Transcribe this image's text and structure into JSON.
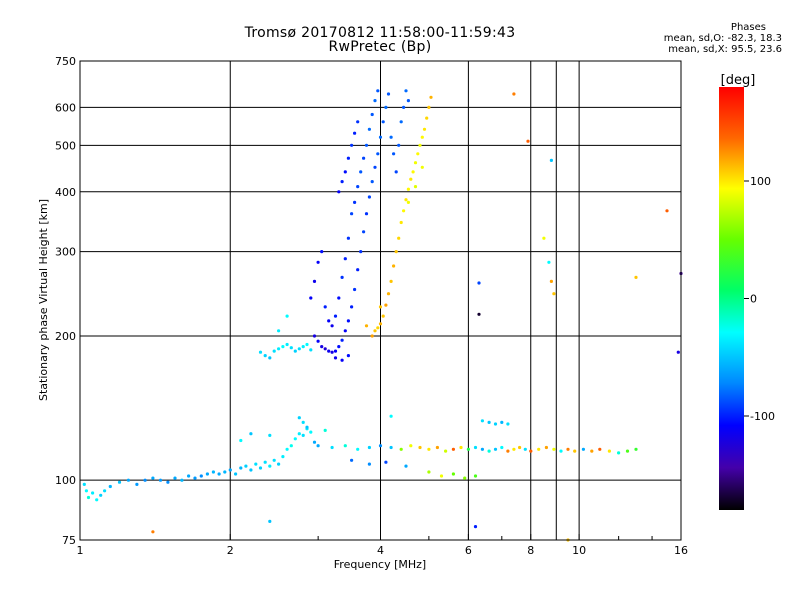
{
  "header": {
    "title": "Tromsø 20170812 11:58:00-11:59:43",
    "subtitle": "RwPretec (Bp)",
    "stats_title": "Phases",
    "stats_o": "mean, sd,O: -82.3, 18.3",
    "stats_x": "mean, sd,X:  95.5, 23.6"
  },
  "chart_data": {
    "type": "scatter",
    "title": "Tromsø 20170812 11:58:00-11:59:43",
    "subtitle": "RwPretec (Bp)",
    "xlabel": "Frequency [MHz]",
    "ylabel": "Stationary phase Virtual Height [km]",
    "x_scale": "log",
    "y_scale": "log",
    "xlim": [
      1,
      16
    ],
    "ylim": [
      75,
      750
    ],
    "x_ticks": [
      {
        "value": 1,
        "label": "1"
      },
      {
        "value": 2,
        "label": "2"
      },
      {
        "value": 4,
        "label": "4"
      },
      {
        "value": 6,
        "label": "6"
      },
      {
        "value": 8,
        "label": "8"
      },
      {
        "value": 10,
        "label": "10"
      },
      {
        "value": 16,
        "label": "16"
      }
    ],
    "x_gridlines": [
      2,
      4,
      6,
      8,
      9,
      10
    ],
    "y_ticks": [
      {
        "value": 75,
        "label": "75"
      },
      {
        "value": 100,
        "label": "100"
      },
      {
        "value": 200,
        "label": "200"
      },
      {
        "value": 300,
        "label": "300"
      },
      {
        "value": 400,
        "label": "400"
      },
      {
        "value": 500,
        "label": "500"
      },
      {
        "value": 600,
        "label": "600"
      },
      {
        "value": 750,
        "label": "750"
      }
    ],
    "grid": true,
    "colorbar": {
      "label": "[deg]",
      "range": [
        -180,
        180
      ],
      "ticks": [
        {
          "value": 100,
          "label": "100"
        },
        {
          "value": 0,
          "label": "0"
        },
        {
          "value": -100,
          "label": "-100"
        }
      ]
    },
    "series": [
      {
        "points": [
          [
            1.02,
            98,
            -40
          ],
          [
            1.03,
            95,
            -30
          ],
          [
            1.04,
            92,
            -20
          ],
          [
            1.06,
            94,
            -35
          ],
          [
            1.08,
            91,
            -30
          ],
          [
            1.1,
            93,
            -45
          ],
          [
            1.12,
            95,
            -40
          ],
          [
            1.15,
            97,
            -55
          ],
          [
            1.2,
            99,
            -50
          ],
          [
            1.25,
            100,
            -60
          ],
          [
            1.3,
            98,
            -65
          ],
          [
            1.35,
            100,
            -70
          ],
          [
            1.4,
            101,
            -60
          ],
          [
            1.45,
            100,
            -65
          ],
          [
            1.5,
            99,
            -70
          ],
          [
            1.55,
            101,
            -60
          ],
          [
            1.6,
            100,
            -55
          ],
          [
            1.65,
            102,
            -60
          ],
          [
            1.7,
            101,
            -65
          ],
          [
            1.75,
            102,
            -70
          ],
          [
            1.8,
            103,
            -60
          ],
          [
            1.85,
            104,
            -55
          ],
          [
            1.9,
            103,
            -60
          ],
          [
            1.95,
            104,
            -55
          ],
          [
            2.0,
            105,
            -60
          ],
          [
            2.05,
            103,
            -50
          ],
          [
            2.1,
            106,
            -55
          ],
          [
            2.15,
            107,
            -45
          ],
          [
            2.2,
            105,
            -50
          ],
          [
            2.25,
            108,
            -40
          ],
          [
            2.3,
            106,
            -45
          ],
          [
            2.35,
            109,
            -40
          ],
          [
            2.4,
            107,
            -35
          ],
          [
            2.45,
            110,
            -40
          ],
          [
            2.5,
            108,
            -45
          ],
          [
            2.55,
            112,
            -35
          ],
          [
            2.6,
            116,
            -30
          ],
          [
            2.65,
            118,
            -25
          ],
          [
            2.7,
            122,
            -30
          ],
          [
            2.75,
            125,
            -35
          ],
          [
            2.8,
            124,
            -40
          ],
          [
            2.85,
            128,
            -35
          ],
          [
            2.9,
            126,
            -30
          ],
          [
            2.75,
            135,
            -45
          ],
          [
            2.8,
            132,
            -40
          ],
          [
            2.85,
            129,
            -50
          ]
        ]
      },
      {
        "points": [
          [
            2.3,
            185,
            -40
          ],
          [
            2.35,
            182,
            -45
          ],
          [
            2.4,
            180,
            -50
          ],
          [
            2.45,
            186,
            -40
          ],
          [
            2.5,
            188,
            -35
          ],
          [
            2.55,
            190,
            -30
          ],
          [
            2.6,
            192,
            -35
          ],
          [
            2.65,
            189,
            -40
          ],
          [
            2.7,
            186,
            -45
          ],
          [
            2.75,
            188,
            -40
          ],
          [
            2.8,
            190,
            -35
          ],
          [
            2.85,
            192,
            -30
          ],
          [
            2.9,
            187,
            -40
          ]
        ]
      },
      {
        "points": [
          [
            2.95,
            200,
            -120
          ],
          [
            3.0,
            195,
            -110
          ],
          [
            3.05,
            190,
            -120
          ],
          [
            3.1,
            188,
            -125
          ],
          [
            3.15,
            186,
            -115
          ],
          [
            3.2,
            185,
            -120
          ],
          [
            3.25,
            186,
            -110
          ],
          [
            3.3,
            190,
            -105
          ],
          [
            3.35,
            196,
            -100
          ],
          [
            3.4,
            205,
            -110
          ],
          [
            3.45,
            215,
            -105
          ],
          [
            3.5,
            230,
            -100
          ],
          [
            3.55,
            250,
            -95
          ],
          [
            3.6,
            275,
            -100
          ],
          [
            3.65,
            300,
            -95
          ],
          [
            3.7,
            330,
            -90
          ],
          [
            3.75,
            360,
            -95
          ],
          [
            3.8,
            390,
            -90
          ],
          [
            3.85,
            420,
            -85
          ],
          [
            3.9,
            450,
            -90
          ],
          [
            3.95,
            480,
            -85
          ],
          [
            4.0,
            520,
            -80
          ],
          [
            4.05,
            560,
            -85
          ],
          [
            4.1,
            600,
            -80
          ],
          [
            4.15,
            640,
            -85
          ],
          [
            2.9,
            240,
            -110
          ],
          [
            2.95,
            260,
            -115
          ],
          [
            3.0,
            285,
            -110
          ],
          [
            3.05,
            300,
            -105
          ],
          [
            3.1,
            230,
            -100
          ],
          [
            3.15,
            215,
            -110
          ],
          [
            3.2,
            210,
            -115
          ],
          [
            3.25,
            220,
            -100
          ],
          [
            3.3,
            240,
            -105
          ],
          [
            3.35,
            265,
            -95
          ],
          [
            3.4,
            290,
            -100
          ],
          [
            3.45,
            320,
            -95
          ],
          [
            3.5,
            360,
            -90
          ],
          [
            3.55,
            380,
            -95
          ],
          [
            3.6,
            410,
            -90
          ],
          [
            3.65,
            440,
            -85
          ],
          [
            3.7,
            470,
            -90
          ],
          [
            3.75,
            500,
            -85
          ],
          [
            3.8,
            540,
            -80
          ],
          [
            3.85,
            580,
            -85
          ],
          [
            3.9,
            620,
            -80
          ],
          [
            3.95,
            650,
            -85
          ],
          [
            3.3,
            400,
            -110
          ],
          [
            3.35,
            420,
            -100
          ],
          [
            3.4,
            440,
            -105
          ],
          [
            3.45,
            470,
            -100
          ],
          [
            3.5,
            500,
            -95
          ],
          [
            3.55,
            530,
            -100
          ],
          [
            3.6,
            560,
            -95
          ],
          [
            4.2,
            520,
            -80
          ],
          [
            4.25,
            480,
            -85
          ],
          [
            4.3,
            440,
            -90
          ],
          [
            4.35,
            500,
            -85
          ],
          [
            4.4,
            560,
            -80
          ],
          [
            4.45,
            600,
            -85
          ],
          [
            4.5,
            650,
            -80
          ],
          [
            4.55,
            620,
            -85
          ],
          [
            3.25,
            180,
            -115
          ],
          [
            3.35,
            178,
            -110
          ],
          [
            3.45,
            182,
            -105
          ]
        ]
      },
      {
        "points": [
          [
            3.9,
            205,
            110
          ],
          [
            3.95,
            208,
            105
          ],
          [
            4.0,
            212,
            115
          ],
          [
            4.05,
            220,
            110
          ],
          [
            4.1,
            232,
            120
          ],
          [
            4.15,
            245,
            115
          ],
          [
            4.2,
            260,
            110
          ],
          [
            4.25,
            280,
            115
          ],
          [
            4.3,
            300,
            110
          ],
          [
            4.35,
            320,
            105
          ],
          [
            4.4,
            345,
            100
          ],
          [
            4.45,
            365,
            95
          ],
          [
            4.5,
            385,
            100
          ],
          [
            4.55,
            405,
            95
          ],
          [
            4.6,
            425,
            100
          ],
          [
            4.65,
            440,
            95
          ],
          [
            4.7,
            460,
            90
          ],
          [
            4.75,
            480,
            95
          ],
          [
            4.8,
            500,
            90
          ],
          [
            4.85,
            520,
            95
          ],
          [
            4.9,
            540,
            100
          ],
          [
            4.95,
            570,
            105
          ],
          [
            5.0,
            600,
            110
          ],
          [
            5.05,
            630,
            115
          ],
          [
            4.55,
            380,
            90
          ],
          [
            4.7,
            410,
            85
          ],
          [
            4.85,
            450,
            90
          ],
          [
            3.75,
            210,
            115
          ],
          [
            3.85,
            200,
            120
          ],
          [
            4.0,
            230,
            110
          ]
        ]
      },
      {
        "points": [
          [
            3.0,
            118,
            -60
          ],
          [
            3.2,
            117,
            -40
          ],
          [
            3.4,
            118,
            -20
          ],
          [
            3.6,
            116,
            -30
          ],
          [
            3.8,
            117,
            -45
          ],
          [
            4.0,
            118,
            -70
          ],
          [
            4.2,
            117,
            -50
          ],
          [
            4.4,
            116,
            60
          ],
          [
            4.6,
            118,
            90
          ],
          [
            4.8,
            117,
            110
          ],
          [
            5.0,
            116,
            100
          ],
          [
            5.2,
            117,
            120
          ],
          [
            5.4,
            115,
            80
          ],
          [
            5.6,
            116,
            140
          ],
          [
            5.8,
            117,
            100
          ],
          [
            6.0,
            116,
            20
          ],
          [
            6.2,
            117,
            -40
          ],
          [
            6.4,
            116,
            -60
          ],
          [
            6.6,
            115,
            -20
          ],
          [
            6.8,
            116,
            -50
          ],
          [
            7.0,
            117,
            -30
          ],
          [
            7.2,
            115,
            130
          ],
          [
            7.4,
            116,
            100
          ],
          [
            7.6,
            117,
            110
          ],
          [
            7.8,
            116,
            -40
          ],
          [
            8.0,
            115,
            140
          ],
          [
            8.3,
            116,
            100
          ],
          [
            8.6,
            117,
            120
          ],
          [
            8.9,
            116,
            90
          ],
          [
            9.2,
            115,
            -30
          ],
          [
            9.5,
            116,
            130
          ],
          [
            9.8,
            115,
            110
          ],
          [
            10.2,
            116,
            -60
          ],
          [
            10.6,
            115,
            120
          ],
          [
            11.0,
            116,
            140
          ],
          [
            11.5,
            115,
            100
          ],
          [
            12.0,
            114,
            -20
          ],
          [
            12.5,
            115,
            40
          ],
          [
            13.0,
            116,
            30
          ],
          [
            3.5,
            110,
            -80
          ],
          [
            3.8,
            108,
            -70
          ],
          [
            4.1,
            109,
            -90
          ],
          [
            4.5,
            107,
            -60
          ],
          [
            5.0,
            104,
            70
          ],
          [
            5.3,
            102,
            90
          ],
          [
            5.6,
            103,
            50
          ],
          [
            5.9,
            101,
            60
          ],
          [
            6.2,
            102,
            40
          ],
          [
            6.4,
            133,
            -40
          ],
          [
            6.6,
            132,
            -50
          ],
          [
            6.8,
            131,
            -45
          ],
          [
            7.0,
            132,
            -55
          ],
          [
            7.2,
            131,
            -40
          ],
          [
            4.2,
            136,
            -30
          ],
          [
            3.1,
            127,
            -20
          ],
          [
            2.95,
            120,
            -60
          ],
          [
            2.4,
            124,
            -40
          ],
          [
            2.2,
            125,
            -50
          ],
          [
            2.1,
            121,
            -30
          ]
        ]
      },
      {
        "points": [
          [
            7.4,
            640,
            130
          ],
          [
            8.8,
            465,
            -50
          ],
          [
            8.5,
            320,
            90
          ],
          [
            8.7,
            285,
            -30
          ],
          [
            8.8,
            260,
            120
          ],
          [
            8.9,
            245,
            110
          ],
          [
            6.3,
            258,
            -90
          ],
          [
            6.3,
            222,
            -170
          ],
          [
            7.9,
            510,
            140
          ],
          [
            15,
            365,
            140
          ],
          [
            16,
            270,
            -150
          ],
          [
            13,
            265,
            110
          ],
          [
            15.8,
            185,
            -120
          ],
          [
            2.6,
            220,
            -30
          ],
          [
            2.5,
            205,
            -35
          ],
          [
            2.4,
            82,
            -50
          ],
          [
            1.4,
            78,
            130
          ],
          [
            6.2,
            80,
            -100
          ],
          [
            9.5,
            75,
            110
          ]
        ]
      }
    ]
  }
}
